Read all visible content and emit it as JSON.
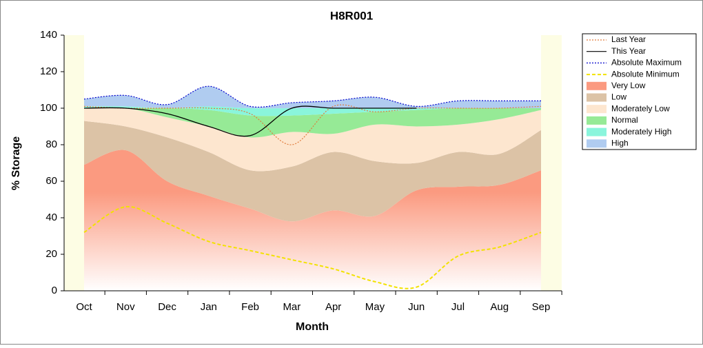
{
  "chart_data": {
    "type": "area",
    "title": "H8R001",
    "x_label": "Month",
    "y_label": "% Storage",
    "categories": [
      "Oct",
      "Nov",
      "Dec",
      "Jan",
      "Feb",
      "Mar",
      "Apr",
      "May",
      "Jun",
      "Jul",
      "Aug",
      "Sep"
    ],
    "ylim": [
      0,
      140
    ],
    "yticks": [
      0,
      20,
      40,
      60,
      80,
      100,
      120,
      140
    ],
    "legend": "right",
    "series": [
      {
        "name": "Last Year",
        "kind": "line",
        "style": "dotted",
        "color": "#e07a3a",
        "values": [
          101,
          100,
          100,
          100,
          97,
          80,
          101,
          98,
          100,
          100,
          100,
          101
        ]
      },
      {
        "name": "This Year",
        "kind": "line",
        "style": "solid",
        "color": "#000000",
        "values": [
          100,
          100,
          97,
          90,
          85,
          100,
          100,
          100,
          100,
          null,
          null,
          null
        ]
      },
      {
        "name": "Absolute Maximum",
        "kind": "line",
        "style": "dotted",
        "color": "#0000cc",
        "values": [
          105,
          107,
          102,
          112,
          101,
          103,
          104,
          106,
          101,
          104,
          104,
          104
        ]
      },
      {
        "name": "Absolute Minimum",
        "kind": "line",
        "style": "dashed",
        "color": "#f2e200",
        "values": [
          32,
          46,
          37,
          27,
          22,
          17,
          12,
          5,
          2,
          19,
          24,
          32
        ]
      },
      {
        "name": "Very Low",
        "kind": "stacked",
        "color": "#fb9a80",
        "values": [
          69,
          77,
          60,
          52,
          45,
          38,
          44,
          41,
          55,
          57,
          58,
          66
        ]
      },
      {
        "name": "Low",
        "kind": "stacked",
        "color": "#dcc3a6",
        "values": [
          24,
          13,
          24,
          24,
          21,
          30,
          32,
          30,
          15,
          19,
          17,
          22
        ]
      },
      {
        "name": "Moderately Low",
        "kind": "stacked",
        "color": "#fde6cf",
        "values": [
          7,
          10,
          11,
          14,
          18,
          19,
          10,
          20,
          20,
          15,
          19,
          11
        ]
      },
      {
        "name": "Normal",
        "kind": "stacked",
        "color": "#96ea96",
        "values": [
          0,
          0,
          5,
          9,
          12,
          9,
          11,
          7,
          9,
          9,
          6,
          1
        ]
      },
      {
        "name": "Moderately High",
        "kind": "stacked",
        "color": "#8af5dc",
        "values": [
          1,
          1,
          0,
          2,
          4,
          4,
          3,
          2,
          1,
          0,
          0,
          0
        ]
      },
      {
        "name": "High",
        "kind": "stacked",
        "color": "#b0ccf0",
        "values": [
          4,
          6,
          2,
          11,
          1,
          3,
          4,
          6,
          1,
          4,
          4,
          4
        ]
      }
    ]
  }
}
